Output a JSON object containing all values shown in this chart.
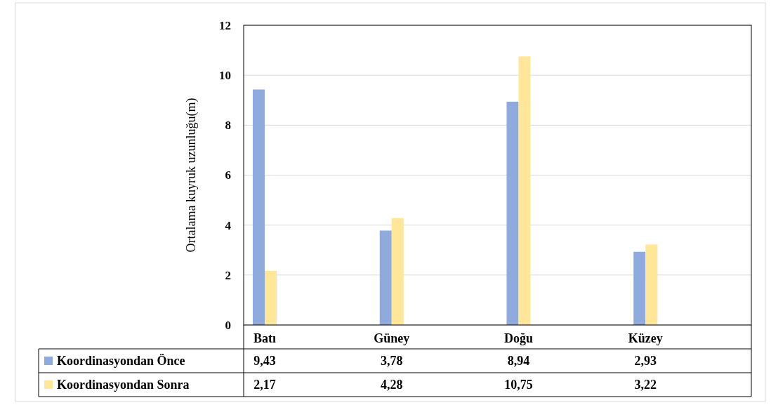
{
  "chart_data": {
    "type": "bar",
    "ylabel": "Ortalama kuyruk uzunluğu(m)",
    "categories": [
      "Batı",
      "Güney",
      "Doğu",
      "Küzey"
    ],
    "series": [
      {
        "name": "Koordinasyondan Önce",
        "color": "#8faadc",
        "values": [
          9.43,
          3.78,
          8.94,
          2.93
        ],
        "value_labels": [
          "9,43",
          "3,78",
          "8,94",
          "2,93"
        ]
      },
      {
        "name": "Koordinasyondan Sonra",
        "color": "#ffe699",
        "values": [
          2.17,
          4.28,
          10.75,
          3.22
        ],
        "value_labels": [
          "2,17",
          "4,28",
          "10,75",
          "3,22"
        ]
      }
    ],
    "ylim": [
      0,
      12
    ],
    "yticks": [
      0,
      2,
      4,
      6,
      8,
      10,
      12
    ],
    "grid": "y",
    "legend": "bottom",
    "data_labels": true
  }
}
